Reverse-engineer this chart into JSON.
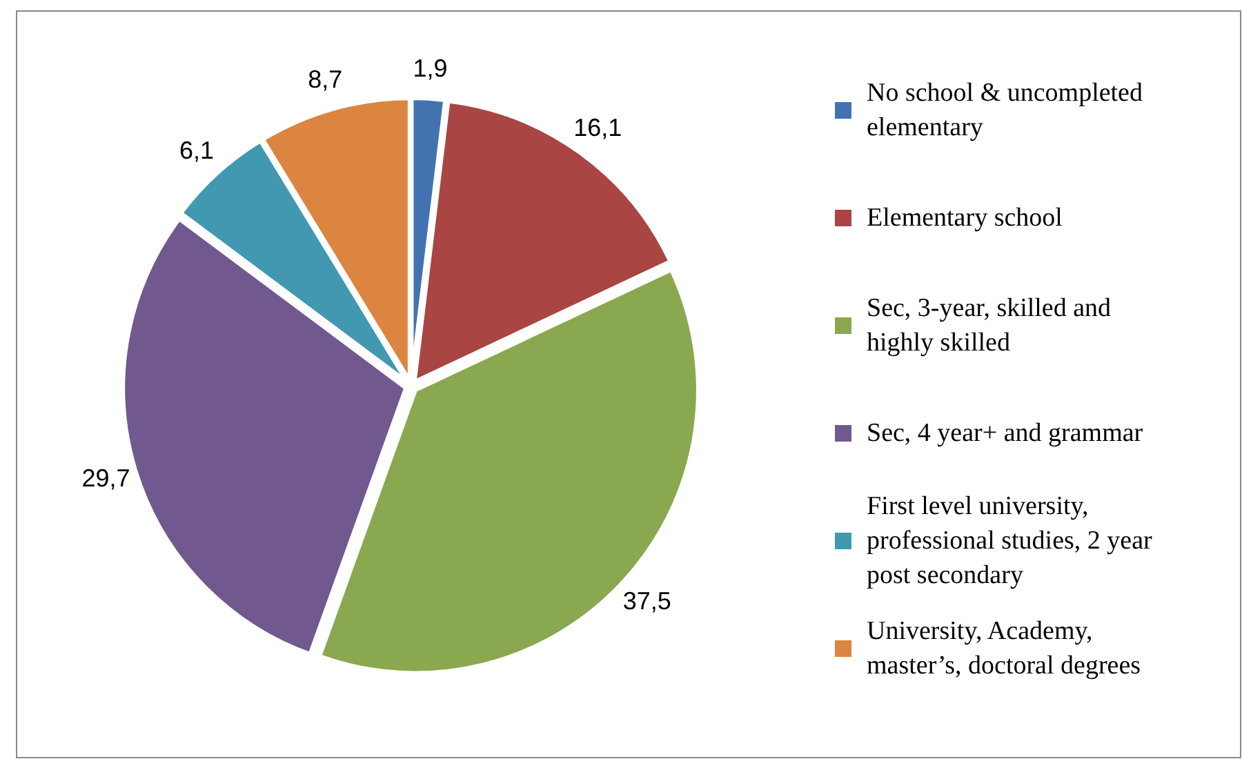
{
  "chart_data": {
    "type": "pie",
    "categories": [
      "No school & uncompleted elementary",
      "Elementary school",
      "Sec, 3-year, skilled and highly skilled",
      "Sec, 4 year+ and grammar",
      "First level university, professional studies, 2 year post secondary",
      "University, Academy, master’s, doctoral degrees"
    ],
    "values": [
      1.9,
      16.1,
      37.5,
      29.7,
      6.1,
      8.7
    ],
    "value_labels": [
      "1,9",
      "16,1",
      "37,5",
      "29,7",
      "6,1",
      "8,7"
    ],
    "colors": [
      "#4272b0",
      "#a94543",
      "#8aa84f",
      "#71588f",
      "#4298b0",
      "#db8540"
    ],
    "legend": "right"
  }
}
